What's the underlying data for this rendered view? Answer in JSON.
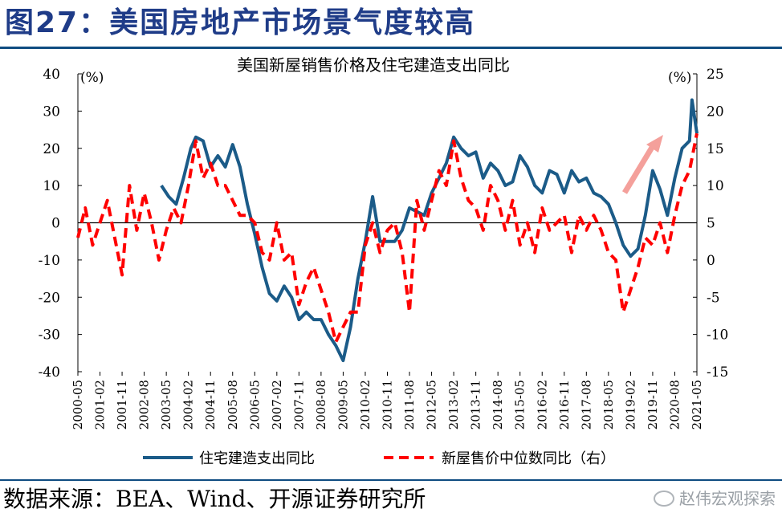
{
  "figure": {
    "title": "图27：美国房地产市场景气度较高",
    "source": "数据来源：BEA、Wind、开源证券研究所",
    "watermark": "赵伟宏观探索"
  },
  "chart_data": {
    "type": "line",
    "title": "美国新屋销售价格及住宅建造支出同比",
    "left_axis": {
      "unit": "(%)",
      "ylim": [
        -40,
        40
      ],
      "ticks": [
        -40,
        -30,
        -20,
        -10,
        0,
        10,
        20,
        30,
        40
      ]
    },
    "right_axis": {
      "unit": "(%)",
      "ylim": [
        -15,
        25
      ],
      "ticks": [
        -15,
        -10,
        -5,
        0,
        5,
        10,
        15,
        20,
        25
      ]
    },
    "x_ticks": [
      "2000-05",
      "2001-02",
      "2001-11",
      "2002-08",
      "2003-05",
      "2004-02",
      "2004-11",
      "2005-08",
      "2006-05",
      "2007-02",
      "2007-11",
      "2008-08",
      "2009-05",
      "2010-02",
      "2010-11",
      "2011-08",
      "2012-05",
      "2013-02",
      "2013-11",
      "2014-08",
      "2015-05",
      "2016-02",
      "2016-11",
      "2017-08",
      "2018-05",
      "2019-02",
      "2019-11",
      "2020-08",
      "2021-05"
    ],
    "grid": false,
    "legend_position": "bottom",
    "annotation": "upward-arrow",
    "colors": {
      "construction": "#1b5b88",
      "price": "#ff0000",
      "arrow": "#f4a09b",
      "title": "#1f3c88",
      "rule": "#0f4c81"
    },
    "series": [
      {
        "name": "住宅建造支出同比",
        "axis": "left",
        "style": "solid",
        "points": [
          [
            "2003-03",
            10
          ],
          [
            "2003-06",
            7
          ],
          [
            "2003-09",
            5
          ],
          [
            "2003-12",
            12
          ],
          [
            "2004-03",
            20
          ],
          [
            "2004-05",
            23
          ],
          [
            "2004-08",
            22
          ],
          [
            "2004-11",
            15
          ],
          [
            "2005-02",
            18
          ],
          [
            "2005-05",
            15
          ],
          [
            "2005-08",
            21
          ],
          [
            "2005-11",
            15
          ],
          [
            "2006-02",
            5
          ],
          [
            "2006-05",
            -3
          ],
          [
            "2006-08",
            -12
          ],
          [
            "2006-11",
            -19
          ],
          [
            "2007-02",
            -21
          ],
          [
            "2007-05",
            -17
          ],
          [
            "2007-08",
            -20
          ],
          [
            "2007-11",
            -26
          ],
          [
            "2008-02",
            -24
          ],
          [
            "2008-05",
            -26
          ],
          [
            "2008-08",
            -26
          ],
          [
            "2008-11",
            -30
          ],
          [
            "2009-02",
            -33
          ],
          [
            "2009-05",
            -37
          ],
          [
            "2009-08",
            -28
          ],
          [
            "2009-11",
            -15
          ],
          [
            "2010-02",
            -5
          ],
          [
            "2010-05",
            7
          ],
          [
            "2010-08",
            -5
          ],
          [
            "2010-11",
            -5
          ],
          [
            "2011-02",
            -5
          ],
          [
            "2011-05",
            -2
          ],
          [
            "2011-08",
            4
          ],
          [
            "2011-11",
            3
          ],
          [
            "2012-02",
            2
          ],
          [
            "2012-05",
            8
          ],
          [
            "2012-08",
            12
          ],
          [
            "2012-11",
            16
          ],
          [
            "2013-02",
            23
          ],
          [
            "2013-05",
            20
          ],
          [
            "2013-08",
            18
          ],
          [
            "2013-11",
            19
          ],
          [
            "2014-02",
            12
          ],
          [
            "2014-05",
            16
          ],
          [
            "2014-08",
            14
          ],
          [
            "2014-11",
            10
          ],
          [
            "2015-02",
            11
          ],
          [
            "2015-05",
            18
          ],
          [
            "2015-08",
            15
          ],
          [
            "2015-11",
            10
          ],
          [
            "2016-02",
            8
          ],
          [
            "2016-05",
            14
          ],
          [
            "2016-08",
            13
          ],
          [
            "2016-11",
            8
          ],
          [
            "2017-02",
            14
          ],
          [
            "2017-05",
            11
          ],
          [
            "2017-08",
            12
          ],
          [
            "2017-11",
            8
          ],
          [
            "2018-02",
            7
          ],
          [
            "2018-05",
            5
          ],
          [
            "2018-08",
            0
          ],
          [
            "2018-11",
            -6
          ],
          [
            "2019-02",
            -9
          ],
          [
            "2019-05",
            -7
          ],
          [
            "2019-08",
            2
          ],
          [
            "2019-11",
            14
          ],
          [
            "2020-02",
            9
          ],
          [
            "2020-05",
            2
          ],
          [
            "2020-08",
            12
          ],
          [
            "2020-11",
            20
          ],
          [
            "2021-02",
            22
          ],
          [
            "2021-03",
            33
          ],
          [
            "2021-05",
            24
          ]
        ]
      },
      {
        "name": "新屋售价中位数同比（右）",
        "axis": "right",
        "style": "dashed",
        "points": [
          [
            "2000-05",
            3
          ],
          [
            "2000-08",
            7
          ],
          [
            "2000-11",
            2
          ],
          [
            "2001-02",
            5
          ],
          [
            "2001-05",
            8
          ],
          [
            "2001-08",
            3
          ],
          [
            "2001-11",
            -2
          ],
          [
            "2002-02",
            10
          ],
          [
            "2002-05",
            4
          ],
          [
            "2002-08",
            9
          ],
          [
            "2002-11",
            5
          ],
          [
            "2003-02",
            0
          ],
          [
            "2003-05",
            4
          ],
          [
            "2003-08",
            7
          ],
          [
            "2003-11",
            5
          ],
          [
            "2004-02",
            10
          ],
          [
            "2004-05",
            16
          ],
          [
            "2004-08",
            11
          ],
          [
            "2004-11",
            13
          ],
          [
            "2005-02",
            10
          ],
          [
            "2005-05",
            10
          ],
          [
            "2005-08",
            8
          ],
          [
            "2005-11",
            6
          ],
          [
            "2006-02",
            6
          ],
          [
            "2006-05",
            5
          ],
          [
            "2006-08",
            1
          ],
          [
            "2006-11",
            0
          ],
          [
            "2007-02",
            5
          ],
          [
            "2007-05",
            0
          ],
          [
            "2007-08",
            1
          ],
          [
            "2007-11",
            -6
          ],
          [
            "2008-02",
            -3
          ],
          [
            "2008-05",
            -1
          ],
          [
            "2008-08",
            -4
          ],
          [
            "2008-11",
            -7
          ],
          [
            "2009-02",
            -11
          ],
          [
            "2009-05",
            -9
          ],
          [
            "2009-08",
            -7
          ],
          [
            "2009-11",
            -7
          ],
          [
            "2010-02",
            2
          ],
          [
            "2010-05",
            5
          ],
          [
            "2010-08",
            1
          ],
          [
            "2010-11",
            4
          ],
          [
            "2011-02",
            5
          ],
          [
            "2011-05",
            1
          ],
          [
            "2011-08",
            -7
          ],
          [
            "2011-11",
            8
          ],
          [
            "2012-02",
            4
          ],
          [
            "2012-05",
            8
          ],
          [
            "2012-08",
            12
          ],
          [
            "2012-11",
            10
          ],
          [
            "2013-02",
            16
          ],
          [
            "2013-05",
            11
          ],
          [
            "2013-08",
            8
          ],
          [
            "2013-11",
            7
          ],
          [
            "2014-02",
            4
          ],
          [
            "2014-05",
            10
          ],
          [
            "2014-08",
            8
          ],
          [
            "2014-11",
            4
          ],
          [
            "2015-02",
            8
          ],
          [
            "2015-05",
            2
          ],
          [
            "2015-08",
            5
          ],
          [
            "2015-11",
            1
          ],
          [
            "2016-02",
            7
          ],
          [
            "2016-05",
            4
          ],
          [
            "2016-08",
            5
          ],
          [
            "2016-11",
            6
          ],
          [
            "2017-02",
            1
          ],
          [
            "2017-05",
            6
          ],
          [
            "2017-08",
            4
          ],
          [
            "2017-11",
            6
          ],
          [
            "2018-02",
            4
          ],
          [
            "2018-05",
            1
          ],
          [
            "2018-08",
            0
          ],
          [
            "2018-11",
            -7
          ],
          [
            "2019-02",
            -4
          ],
          [
            "2019-05",
            -1
          ],
          [
            "2019-08",
            3
          ],
          [
            "2019-11",
            2
          ],
          [
            "2020-02",
            5
          ],
          [
            "2020-05",
            1
          ],
          [
            "2020-08",
            6
          ],
          [
            "2020-11",
            10
          ],
          [
            "2021-02",
            12
          ],
          [
            "2021-05",
            17
          ]
        ]
      }
    ]
  }
}
